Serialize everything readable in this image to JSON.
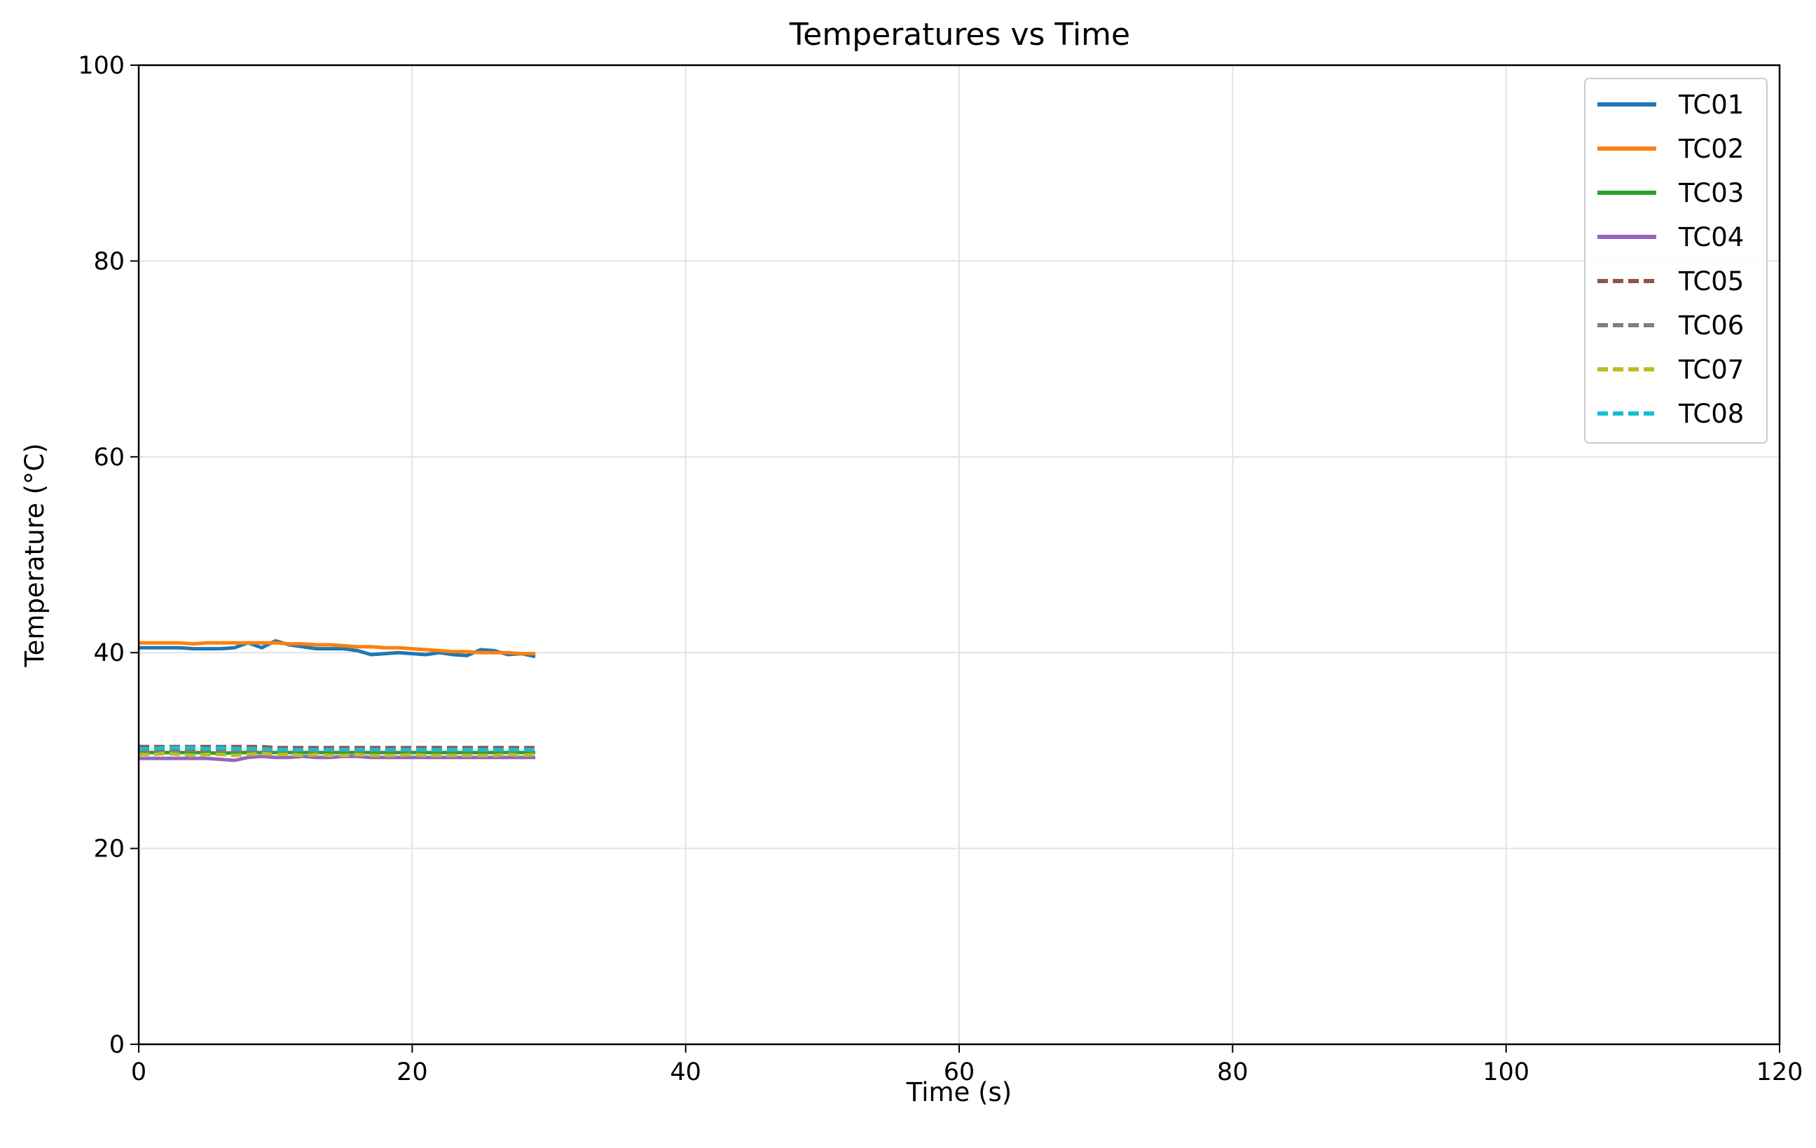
{
  "chart_data": {
    "type": "line",
    "title": "Temperatures vs Time",
    "xlabel": "Time (s)",
    "ylabel": "Temperature (°C)",
    "xlim": [
      0,
      120
    ],
    "ylim": [
      0,
      100
    ],
    "xticks": [
      0,
      20,
      40,
      60,
      80,
      100,
      120
    ],
    "yticks": [
      0,
      20,
      40,
      60,
      80,
      100
    ],
    "grid": true,
    "legend_position": "top-right",
    "x": [
      0,
      1,
      2,
      3,
      4,
      5,
      6,
      7,
      8,
      9,
      10,
      11,
      12,
      13,
      14,
      15,
      16,
      17,
      18,
      19,
      20,
      21,
      22,
      23,
      24,
      25,
      26,
      27,
      28,
      29
    ],
    "series": [
      {
        "name": "TC01",
        "color": "#1f77b4",
        "dash": "solid",
        "values": [
          40.5,
          40.5,
          40.5,
          40.5,
          40.4,
          40.4,
          40.4,
          40.5,
          41.0,
          40.5,
          41.2,
          40.8,
          40.6,
          40.4,
          40.4,
          40.4,
          40.2,
          39.8,
          39.9,
          40.0,
          39.9,
          39.8,
          40.0,
          39.8,
          39.7,
          40.3,
          40.2,
          39.8,
          39.9,
          39.6
        ]
      },
      {
        "name": "TC02",
        "color": "#ff7f0e",
        "dash": "solid",
        "values": [
          41.0,
          41.0,
          41.0,
          41.0,
          40.9,
          41.0,
          41.0,
          41.0,
          41.0,
          41.0,
          41.0,
          40.9,
          40.9,
          40.8,
          40.8,
          40.7,
          40.6,
          40.6,
          40.5,
          40.5,
          40.4,
          40.3,
          40.2,
          40.1,
          40.1,
          40.0,
          40.0,
          40.0,
          39.9,
          39.9
        ]
      },
      {
        "name": "TC03",
        "color": "#2ca02c",
        "dash": "solid",
        "values": [
          29.8,
          29.8,
          29.8,
          29.8,
          29.8,
          29.8,
          29.7,
          29.8,
          29.8,
          29.8,
          29.8,
          29.8,
          29.8,
          29.8,
          29.8,
          29.8,
          29.8,
          29.8,
          29.8,
          29.8,
          29.8,
          29.8,
          29.8,
          29.8,
          29.8,
          29.8,
          29.8,
          29.8,
          29.8,
          29.8
        ]
      },
      {
        "name": "TC04",
        "color": "#9467bd",
        "dash": "solid",
        "values": [
          29.2,
          29.2,
          29.2,
          29.2,
          29.2,
          29.2,
          29.1,
          29.0,
          29.3,
          29.4,
          29.3,
          29.3,
          29.4,
          29.3,
          29.3,
          29.4,
          29.4,
          29.3,
          29.3,
          29.3,
          29.3,
          29.3,
          29.3,
          29.3,
          29.3,
          29.3,
          29.3,
          29.3,
          29.3,
          29.3
        ]
      },
      {
        "name": "TC05",
        "color": "#8c564b",
        "dash": "dashed",
        "values": [
          30.4,
          30.4,
          30.4,
          30.4,
          30.4,
          30.4,
          30.4,
          30.4,
          30.4,
          30.4,
          30.3,
          30.3,
          30.3,
          30.3,
          30.3,
          30.3,
          30.3,
          30.3,
          30.3,
          30.3,
          30.3,
          30.3,
          30.3,
          30.3,
          30.3,
          30.3,
          30.3,
          30.3,
          30.3,
          30.3
        ]
      },
      {
        "name": "TC06",
        "color": "#7f7f7f",
        "dash": "dashed",
        "values": [
          30.0,
          30.0,
          30.0,
          30.0,
          30.0,
          30.0,
          30.0,
          30.0,
          30.0,
          30.0,
          30.0,
          30.0,
          30.0,
          30.0,
          30.0,
          30.0,
          30.0,
          30.0,
          30.0,
          30.0,
          30.0,
          30.0,
          30.0,
          30.0,
          30.0,
          30.0,
          30.0,
          30.0,
          30.0,
          30.0
        ]
      },
      {
        "name": "TC07",
        "color": "#bcbd22",
        "dash": "dashed",
        "values": [
          29.6,
          29.6,
          29.7,
          29.6,
          29.5,
          29.6,
          29.6,
          29.5,
          29.6,
          29.7,
          29.6,
          29.6,
          29.5,
          29.6,
          29.5,
          29.5,
          29.6,
          29.5,
          29.5,
          29.5,
          29.6,
          29.5,
          29.5,
          29.5,
          29.5,
          29.5,
          29.5,
          29.6,
          29.5,
          29.6
        ]
      },
      {
        "name": "TC08",
        "color": "#17becf",
        "dash": "dashed",
        "values": [
          30.2,
          30.2,
          30.3,
          30.3,
          30.3,
          30.2,
          30.3,
          30.2,
          30.2,
          30.2,
          30.1,
          30.1,
          30.1,
          30.1,
          30.1,
          30.1,
          30.1,
          30.1,
          30.1,
          30.1,
          30.1,
          30.1,
          30.1,
          30.1,
          30.1,
          30.1,
          30.1,
          30.1,
          30.1,
          30.1
        ]
      }
    ]
  }
}
